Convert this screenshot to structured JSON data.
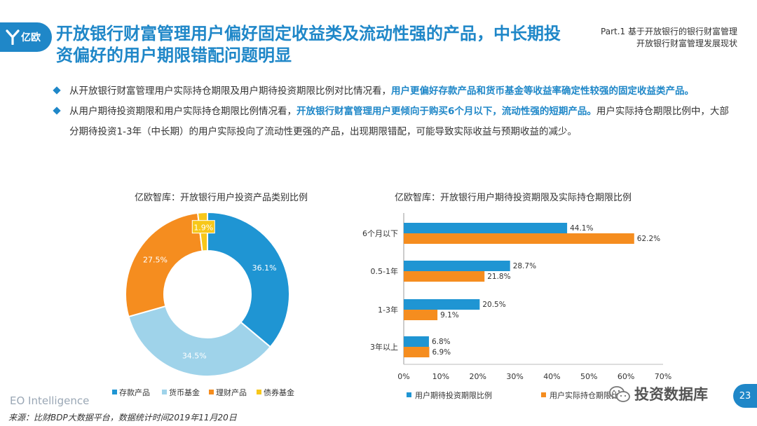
{
  "brand": {
    "logo_text": "亿欧",
    "footer": "EO Intelligence",
    "watermark": "投资数据库"
  },
  "title": "开放银行财富管理用户偏好固定收益类及流动性强的产品，中长期投资偏好的用户期限错配问题明显",
  "part": {
    "line1": "Part.1  基于开放银行的银行财富管理",
    "line2": "开放银行财富管理发展现状"
  },
  "bullets": [
    {
      "plain1": "从开放银行财富管理用户实际持仓期限及用户期待投资期限比例对比情况看，",
      "highlight": "用户更偏好存款产品和货币基金等收益率确定性较强的固定收益类产品。",
      "plain2": ""
    },
    {
      "plain1": "从用户期待投资期限和用户实际持仓期限比例情况看，",
      "highlight": "开放银行财富管理用户更倾向于购买6个月以下，流动性强的短期产品。",
      "plain2": "用户实际持仓期限比例中，大部分期待投资1-3年（中长期）的用户实际投向了流动性更强的产品，出现期限错配，可能导致实际收益与预期收益的减少。"
    }
  ],
  "source": "来源：比财BDP大数据平台，数据统计时间2019年11月20日",
  "page_number": "23",
  "chart_data": [
    {
      "type": "pie",
      "title": "亿欧智库：开放银行用户投资产品类别比例",
      "categories": [
        "存款产品",
        "货币基金",
        "理财产品",
        "债券基金"
      ],
      "values": [
        36.1,
        34.5,
        27.5,
        1.9
      ],
      "labels": [
        "36.1%",
        "34.5%",
        "27.5%",
        "1.9%"
      ],
      "colors": [
        "#1f95d3",
        "#9fd3ea",
        "#f58d1f",
        "#f7c71a"
      ],
      "legend": "bottom"
    },
    {
      "type": "bar",
      "orientation": "horizontal",
      "title": "亿欧智库：开放银行用户期待投资期限及实际持仓期限比例",
      "categories": [
        "6个月以下",
        "0.5-1年",
        "1-3年",
        "3年以上"
      ],
      "series": [
        {
          "name": "用户期待投资期限比例",
          "values": [
            44.1,
            28.7,
            20.5,
            6.8
          ],
          "labels": [
            "44.1%",
            "28.7%",
            "20.5%",
            "6.8%"
          ],
          "color": "#1f95d3"
        },
        {
          "name": "用户实际持仓期限比例",
          "values": [
            62.2,
            21.8,
            9.1,
            6.9
          ],
          "labels": [
            "62.2%",
            "21.8%",
            "9.1%",
            "6.9%"
          ],
          "color": "#f58d1f"
        }
      ],
      "xlim": [
        0,
        70
      ],
      "xticks": [
        "0%",
        "10%",
        "20%",
        "30%",
        "40%",
        "50%",
        "60%",
        "70%"
      ],
      "grid": false,
      "legend": "bottom"
    }
  ]
}
